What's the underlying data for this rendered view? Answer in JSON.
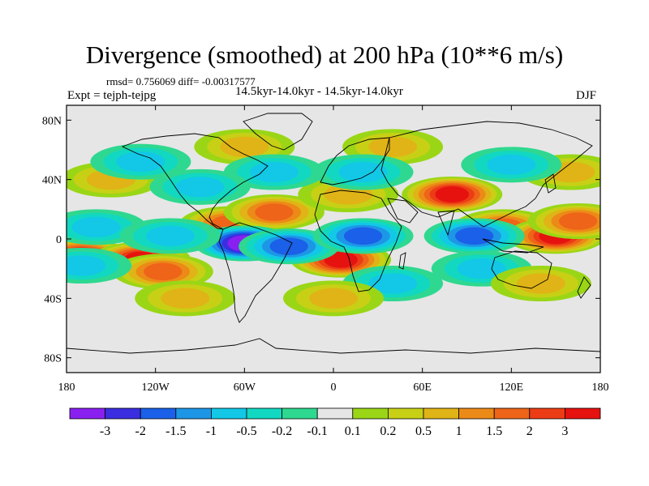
{
  "title": "Divergence (smoothed) at 200 hPa (10**6 m/s)",
  "rmsd_line": "rmsd= 0.756069 diff= -0.00317577",
  "expt_line": "Expt = tejph-tejpg",
  "period_line": "14.5kyr-14.0kyr - 14.5kyr-14.0kyr",
  "season": "DJF",
  "axes": {
    "lat_ticks": [
      {
        "value": 80,
        "label": "80N"
      },
      {
        "value": 40,
        "label": "40N"
      },
      {
        "value": 0,
        "label": "0"
      },
      {
        "value": -40,
        "label": "40S"
      },
      {
        "value": -80,
        "label": "80S"
      }
    ],
    "lon_ticks": [
      {
        "value": -180,
        "label": "180"
      },
      {
        "value": -120,
        "label": "120W"
      },
      {
        "value": -60,
        "label": "60W"
      },
      {
        "value": 0,
        "label": "0"
      },
      {
        "value": 60,
        "label": "60E"
      },
      {
        "value": 120,
        "label": "120E"
      },
      {
        "value": 180,
        "label": "180"
      }
    ]
  },
  "colorbar": {
    "colors": [
      "#8a20f0",
      "#3a2ee0",
      "#1a60e8",
      "#1e96e6",
      "#12c8e6",
      "#12d8c2",
      "#2ed890",
      "#e6e6e6",
      "#9ad616",
      "#c8d016",
      "#e0b416",
      "#ec8a18",
      "#ee6418",
      "#ec3c16",
      "#e61210"
    ],
    "labels": [
      "-3",
      "-2",
      "-1.5",
      "-1",
      "-0.5",
      "-0.2",
      "-0.1",
      "0.1",
      "0.2",
      "0.5",
      "1",
      "1.5",
      "2",
      "3"
    ]
  },
  "anomalies": [
    {
      "lon": -170,
      "lat": -12,
      "level": 3
    },
    {
      "lon": -130,
      "lat": -14,
      "level": 3
    },
    {
      "lon": -115,
      "lat": -22,
      "level": 2
    },
    {
      "lon": -70,
      "lat": 10,
      "level": 2
    },
    {
      "lon": -40,
      "lat": 18,
      "level": 2
    },
    {
      "lon": 5,
      "lat": -14,
      "level": 3
    },
    {
      "lon": 10,
      "lat": 30,
      "level": 1
    },
    {
      "lon": 80,
      "lat": 30,
      "level": 3
    },
    {
      "lon": 115,
      "lat": 8,
      "level": 2
    },
    {
      "lon": 150,
      "lat": 2,
      "level": 3
    },
    {
      "lon": 165,
      "lat": 12,
      "level": 2
    },
    {
      "lon": -150,
      "lat": 40,
      "level": 1
    },
    {
      "lon": -60,
      "lat": 62,
      "level": 1
    },
    {
      "lon": 40,
      "lat": 62,
      "level": 1
    },
    {
      "lon": 160,
      "lat": 45,
      "level": 1
    },
    {
      "lon": -60,
      "lat": -3,
      "level": -3
    },
    {
      "lon": -30,
      "lat": -5,
      "level": -2
    },
    {
      "lon": 20,
      "lat": 2,
      "level": -2
    },
    {
      "lon": 95,
      "lat": 2,
      "level": -2
    },
    {
      "lon": -160,
      "lat": 8,
      "level": -1
    },
    {
      "lon": -110,
      "lat": 2,
      "level": -1
    },
    {
      "lon": -170,
      "lat": -18,
      "level": -1
    },
    {
      "lon": -40,
      "lat": 45,
      "level": -1
    },
    {
      "lon": 20,
      "lat": 45,
      "level": -1
    },
    {
      "lon": 120,
      "lat": 50,
      "level": -1
    },
    {
      "lon": -130,
      "lat": 52,
      "level": -1
    },
    {
      "lon": 100,
      "lat": -20,
      "level": -1
    },
    {
      "lon": 40,
      "lat": -30,
      "level": -1
    },
    {
      "lon": -90,
      "lat": 35,
      "level": -1
    },
    {
      "lon": 0,
      "lat": -40,
      "level": 1
    },
    {
      "lon": -100,
      "lat": -40,
      "level": 1
    },
    {
      "lon": 140,
      "lat": -30,
      "level": 1
    }
  ]
}
